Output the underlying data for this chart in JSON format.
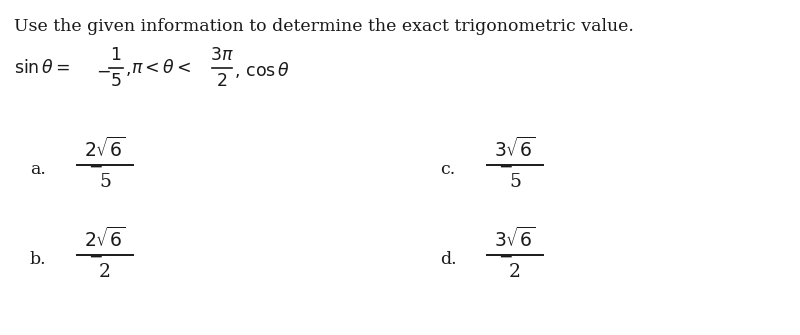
{
  "title": "Use the given information to determine the exact trigonometric value.",
  "bg_color": "#ffffff",
  "text_color": "#1a1a1a",
  "title_fontsize": 12.5,
  "cond_fontsize": 12.5,
  "option_fontsize": 13.5,
  "label_fontsize": 12.5,
  "options": [
    {
      "label": "a.",
      "numerator": "$2\\sqrt{6}$",
      "denominator": "5",
      "col": 0,
      "row": 0
    },
    {
      "label": "b.",
      "numerator": "$2\\sqrt{6}$",
      "denominator": "2",
      "col": 0,
      "row": 1
    },
    {
      "label": "c.",
      "numerator": "$3\\sqrt{6}$",
      "denominator": "5",
      "col": 1,
      "row": 0
    },
    {
      "label": "d.",
      "numerator": "$3\\sqrt{6}$",
      "denominator": "2",
      "col": 1,
      "row": 1
    }
  ]
}
